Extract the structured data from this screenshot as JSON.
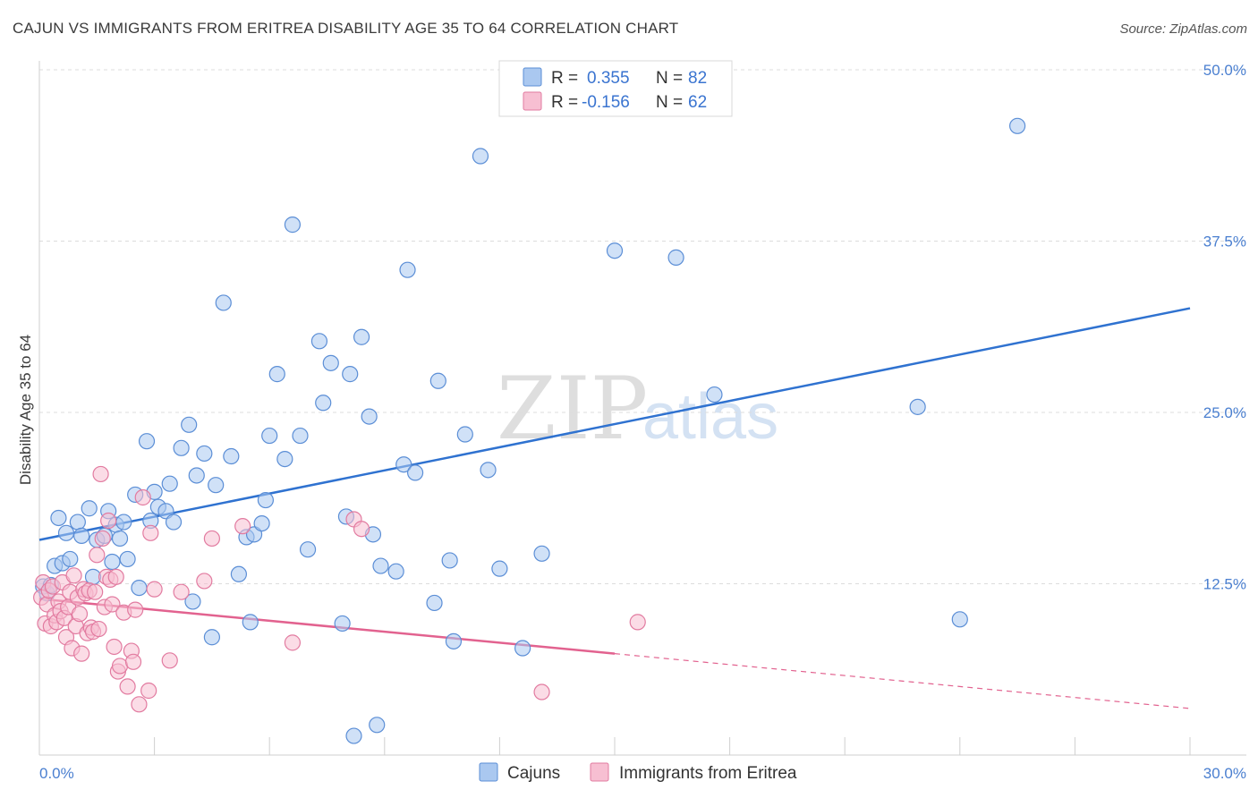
{
  "title": "CAJUN VS IMMIGRANTS FROM ERITREA DISABILITY AGE 35 TO 64 CORRELATION CHART",
  "source": "Source: ZipAtlas.com",
  "watermark": {
    "zip": "ZIP",
    "atlas": "atlas"
  },
  "legend": {
    "r_label": "R =",
    "n_label": "N =",
    "rows": [
      {
        "r": "0.355",
        "n": "82",
        "color": "#aac8f0",
        "edge": "#5b8ed6"
      },
      {
        "r": "-0.156",
        "n": "62",
        "color": "#f7bfd2",
        "edge": "#e27ba0"
      }
    ]
  },
  "bottom_legend": [
    {
      "label": "Cajuns",
      "color": "#aac8f0",
      "edge": "#5b8ed6"
    },
    {
      "label": "Immigrants from Eritrea",
      "color": "#f7bfd2",
      "edge": "#e27ba0"
    }
  ],
  "chart_data": {
    "type": "scatter",
    "title": "CAJUN VS IMMIGRANTS FROM ERITREA DISABILITY AGE 35 TO 64 CORRELATION CHART",
    "xlabel": "",
    "ylabel": "Disability Age 35 to 64",
    "xlim": [
      0,
      30
    ],
    "ylim": [
      0,
      50
    ],
    "x_tick_labels": [
      "0.0%",
      "30.0%"
    ],
    "y_ticks": [
      12.5,
      25.0,
      37.5,
      50.0
    ],
    "y_tick_labels": [
      "12.5%",
      "25.0%",
      "37.5%",
      "50.0%"
    ],
    "grid": "horizontal dashed",
    "legend_position": "top-center",
    "series": [
      {
        "name": "Cajuns",
        "color": "#5b8ed6",
        "fill": "#aac8f0",
        "r": 0.355,
        "n": 82,
        "trend": {
          "x": [
            0,
            30
          ],
          "y": [
            15.7,
            32.6
          ],
          "style": "solid"
        },
        "points": [
          [
            0.1,
            12.3
          ],
          [
            0.2,
            11.8
          ],
          [
            0.3,
            12.4
          ],
          [
            0.4,
            13.8
          ],
          [
            0.5,
            17.3
          ],
          [
            0.6,
            14.0
          ],
          [
            0.7,
            16.2
          ],
          [
            0.8,
            14.3
          ],
          [
            1.0,
            17.0
          ],
          [
            1.1,
            16.0
          ],
          [
            1.3,
            18.0
          ],
          [
            1.4,
            13.0
          ],
          [
            1.5,
            15.7
          ],
          [
            1.7,
            16.0
          ],
          [
            1.8,
            17.8
          ],
          [
            1.9,
            14.1
          ],
          [
            2.0,
            16.8
          ],
          [
            2.1,
            15.8
          ],
          [
            2.2,
            17.0
          ],
          [
            2.3,
            14.3
          ],
          [
            2.5,
            19.0
          ],
          [
            2.6,
            12.2
          ],
          [
            2.8,
            22.9
          ],
          [
            2.9,
            17.1
          ],
          [
            3.0,
            19.2
          ],
          [
            3.1,
            18.1
          ],
          [
            3.3,
            17.8
          ],
          [
            3.4,
            19.8
          ],
          [
            3.5,
            17.0
          ],
          [
            3.7,
            22.4
          ],
          [
            3.9,
            24.1
          ],
          [
            4.0,
            11.2
          ],
          [
            4.1,
            20.4
          ],
          [
            4.3,
            22.0
          ],
          [
            4.5,
            8.6
          ],
          [
            4.6,
            19.7
          ],
          [
            4.8,
            33.0
          ],
          [
            5.0,
            21.8
          ],
          [
            5.2,
            13.2
          ],
          [
            5.4,
            15.9
          ],
          [
            5.5,
            9.7
          ],
          [
            5.6,
            16.1
          ],
          [
            5.8,
            16.9
          ],
          [
            5.9,
            18.6
          ],
          [
            6.0,
            23.3
          ],
          [
            6.2,
            27.8
          ],
          [
            6.4,
            21.6
          ],
          [
            6.6,
            38.7
          ],
          [
            6.8,
            23.3
          ],
          [
            7.0,
            15.0
          ],
          [
            7.3,
            30.2
          ],
          [
            7.4,
            25.7
          ],
          [
            7.6,
            28.6
          ],
          [
            7.9,
            9.6
          ],
          [
            8.0,
            17.4
          ],
          [
            8.1,
            27.8
          ],
          [
            8.2,
            1.4
          ],
          [
            8.4,
            30.5
          ],
          [
            8.6,
            24.7
          ],
          [
            8.7,
            16.1
          ],
          [
            8.8,
            2.2
          ],
          [
            8.9,
            13.8
          ],
          [
            9.3,
            13.4
          ],
          [
            9.5,
            21.2
          ],
          [
            9.6,
            35.4
          ],
          [
            9.8,
            20.6
          ],
          [
            10.3,
            11.1
          ],
          [
            10.4,
            27.3
          ],
          [
            10.7,
            14.2
          ],
          [
            10.8,
            8.3
          ],
          [
            11.1,
            23.4
          ],
          [
            11.5,
            43.7
          ],
          [
            11.7,
            20.8
          ],
          [
            12.0,
            13.6
          ],
          [
            12.6,
            7.8
          ],
          [
            13.1,
            14.7
          ],
          [
            15.0,
            36.8
          ],
          [
            16.6,
            36.3
          ],
          [
            17.6,
            26.3
          ],
          [
            22.9,
            25.4
          ],
          [
            24.0,
            9.9
          ],
          [
            25.5,
            45.9
          ]
        ]
      },
      {
        "name": "Immigrants from Eritrea",
        "color": "#e27ba0",
        "fill": "#f7bfd2",
        "r": -0.156,
        "n": 62,
        "trend": {
          "x": [
            0,
            15
          ],
          "y": [
            11.4,
            7.4
          ],
          "style": "solid",
          "extended": {
            "x": [
              15,
              30
            ],
            "y": [
              7.4,
              3.4
            ],
            "style": "dashed"
          }
        },
        "points": [
          [
            0.05,
            11.5
          ],
          [
            0.1,
            12.6
          ],
          [
            0.15,
            9.6
          ],
          [
            0.2,
            11.0
          ],
          [
            0.25,
            12.0
          ],
          [
            0.3,
            9.4
          ],
          [
            0.35,
            12.3
          ],
          [
            0.4,
            10.2
          ],
          [
            0.45,
            9.7
          ],
          [
            0.5,
            11.2
          ],
          [
            0.55,
            10.5
          ],
          [
            0.6,
            12.6
          ],
          [
            0.65,
            10.0
          ],
          [
            0.7,
            8.6
          ],
          [
            0.75,
            10.8
          ],
          [
            0.8,
            11.9
          ],
          [
            0.85,
            7.8
          ],
          [
            0.9,
            13.1
          ],
          [
            0.95,
            9.4
          ],
          [
            1.0,
            11.5
          ],
          [
            1.05,
            10.3
          ],
          [
            1.1,
            7.4
          ],
          [
            1.15,
            12.1
          ],
          [
            1.2,
            11.8
          ],
          [
            1.25,
            8.9
          ],
          [
            1.3,
            12.0
          ],
          [
            1.35,
            9.3
          ],
          [
            1.4,
            9.0
          ],
          [
            1.45,
            11.9
          ],
          [
            1.5,
            14.6
          ],
          [
            1.55,
            9.2
          ],
          [
            1.6,
            20.5
          ],
          [
            1.65,
            15.8
          ],
          [
            1.7,
            10.8
          ],
          [
            1.75,
            13.0
          ],
          [
            1.8,
            17.1
          ],
          [
            1.85,
            12.8
          ],
          [
            1.9,
            11.0
          ],
          [
            1.95,
            7.9
          ],
          [
            2.0,
            13.0
          ],
          [
            2.05,
            6.1
          ],
          [
            2.1,
            6.5
          ],
          [
            2.2,
            10.4
          ],
          [
            2.3,
            5.0
          ],
          [
            2.4,
            7.6
          ],
          [
            2.45,
            6.8
          ],
          [
            2.5,
            10.6
          ],
          [
            2.6,
            3.7
          ],
          [
            2.7,
            18.8
          ],
          [
            2.85,
            4.7
          ],
          [
            2.9,
            16.2
          ],
          [
            3.0,
            12.1
          ],
          [
            3.4,
            6.9
          ],
          [
            3.7,
            11.9
          ],
          [
            4.3,
            12.7
          ],
          [
            4.5,
            15.8
          ],
          [
            5.3,
            16.7
          ],
          [
            6.6,
            8.2
          ],
          [
            8.2,
            17.2
          ],
          [
            8.4,
            16.5
          ],
          [
            13.1,
            4.6
          ],
          [
            15.6,
            9.7
          ]
        ]
      }
    ]
  }
}
